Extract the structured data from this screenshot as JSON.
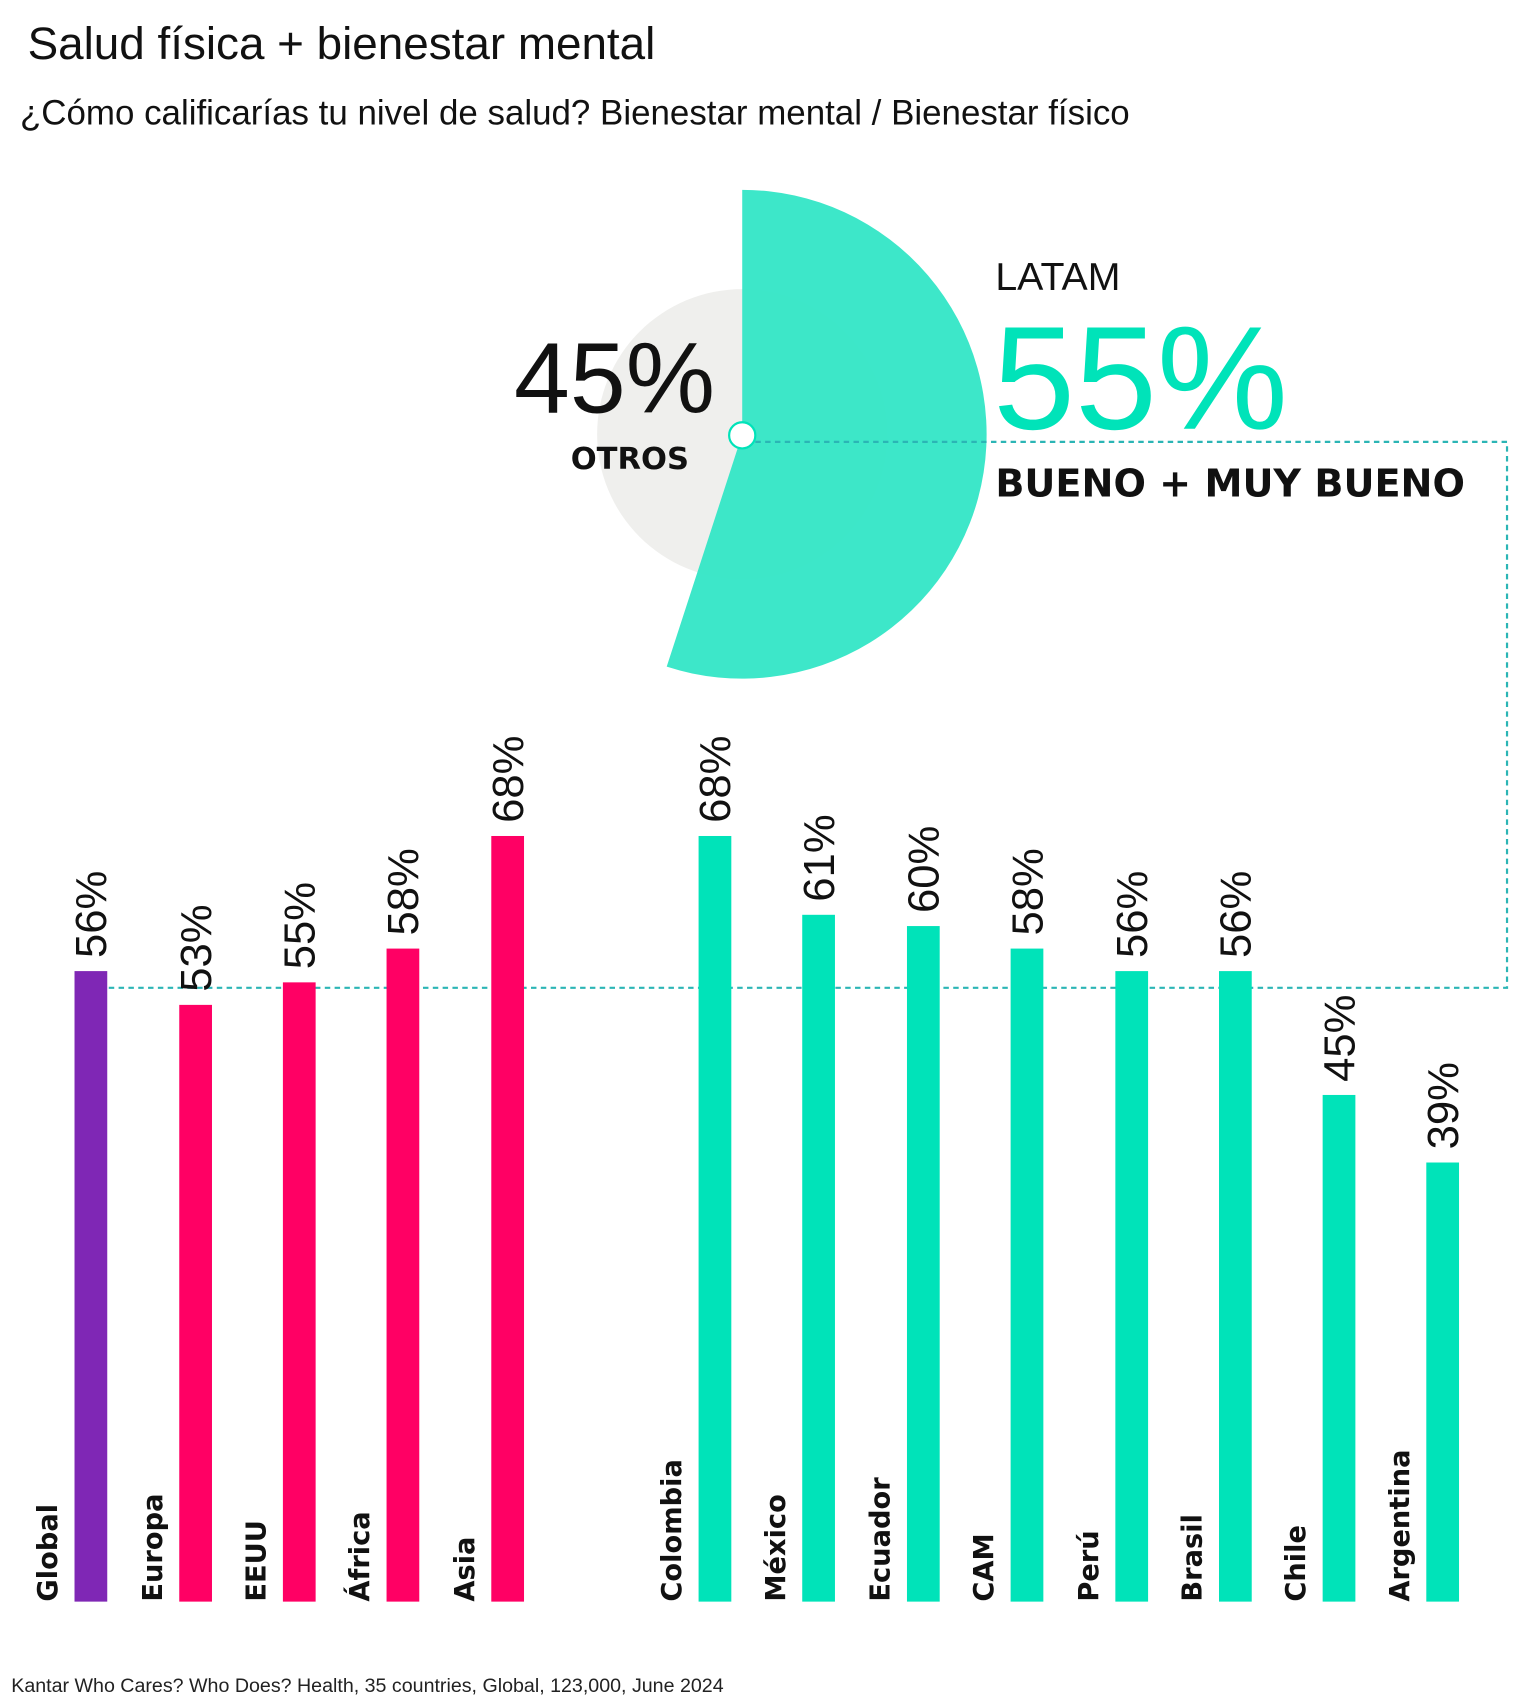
{
  "title": "Salud física + bienestar mental",
  "subtitle": "¿Cómo calificarías tu nivel de salud? Bienestar mental / Bienestar físico",
  "footer": "Kantar Who Cares? Who Does? Health, 35 countries, Global, 123,000, June 2024",
  "colors": {
    "global": "#7F27B5",
    "regions": "#FF0064",
    "latam": "#00E3B9",
    "latam_pie": "#33E6C6",
    "others_pie": "#EFEFED",
    "dashed": "#2BB5B5",
    "text": "#111111"
  },
  "chart_data": [
    {
      "type": "pie",
      "title": "LATAM",
      "slices": [
        {
          "label": "BUENO + MUY BUENO",
          "value": 55,
          "display": "55%"
        },
        {
          "label": "OTROS",
          "value": 45,
          "display": "45%"
        }
      ]
    },
    {
      "type": "bar",
      "orientation": "vertical",
      "categories": [
        "Global",
        "Europa",
        "EEUU",
        "África",
        "Asia",
        "Colombia",
        "México",
        "Ecuador",
        "CAM",
        "Perú",
        "Brasil",
        "Chile",
        "Argentina"
      ],
      "values": [
        56,
        53,
        55,
        58,
        68,
        68,
        61,
        60,
        58,
        56,
        56,
        45,
        39
      ],
      "labels": [
        "56%",
        "53%",
        "55%",
        "58%",
        "68%",
        "68%",
        "61%",
        "60%",
        "58%",
        "56%",
        "56%",
        "45%",
        "39%"
      ],
      "groups": [
        "global",
        "regions",
        "regions",
        "regions",
        "regions",
        "latam",
        "latam",
        "latam",
        "latam",
        "latam",
        "latam",
        "latam",
        "latam"
      ],
      "reference_line": {
        "value": 55,
        "label": "LATAM"
      },
      "ylim": [
        0,
        70
      ],
      "xlabel": "",
      "ylabel": "",
      "grid": false
    }
  ]
}
